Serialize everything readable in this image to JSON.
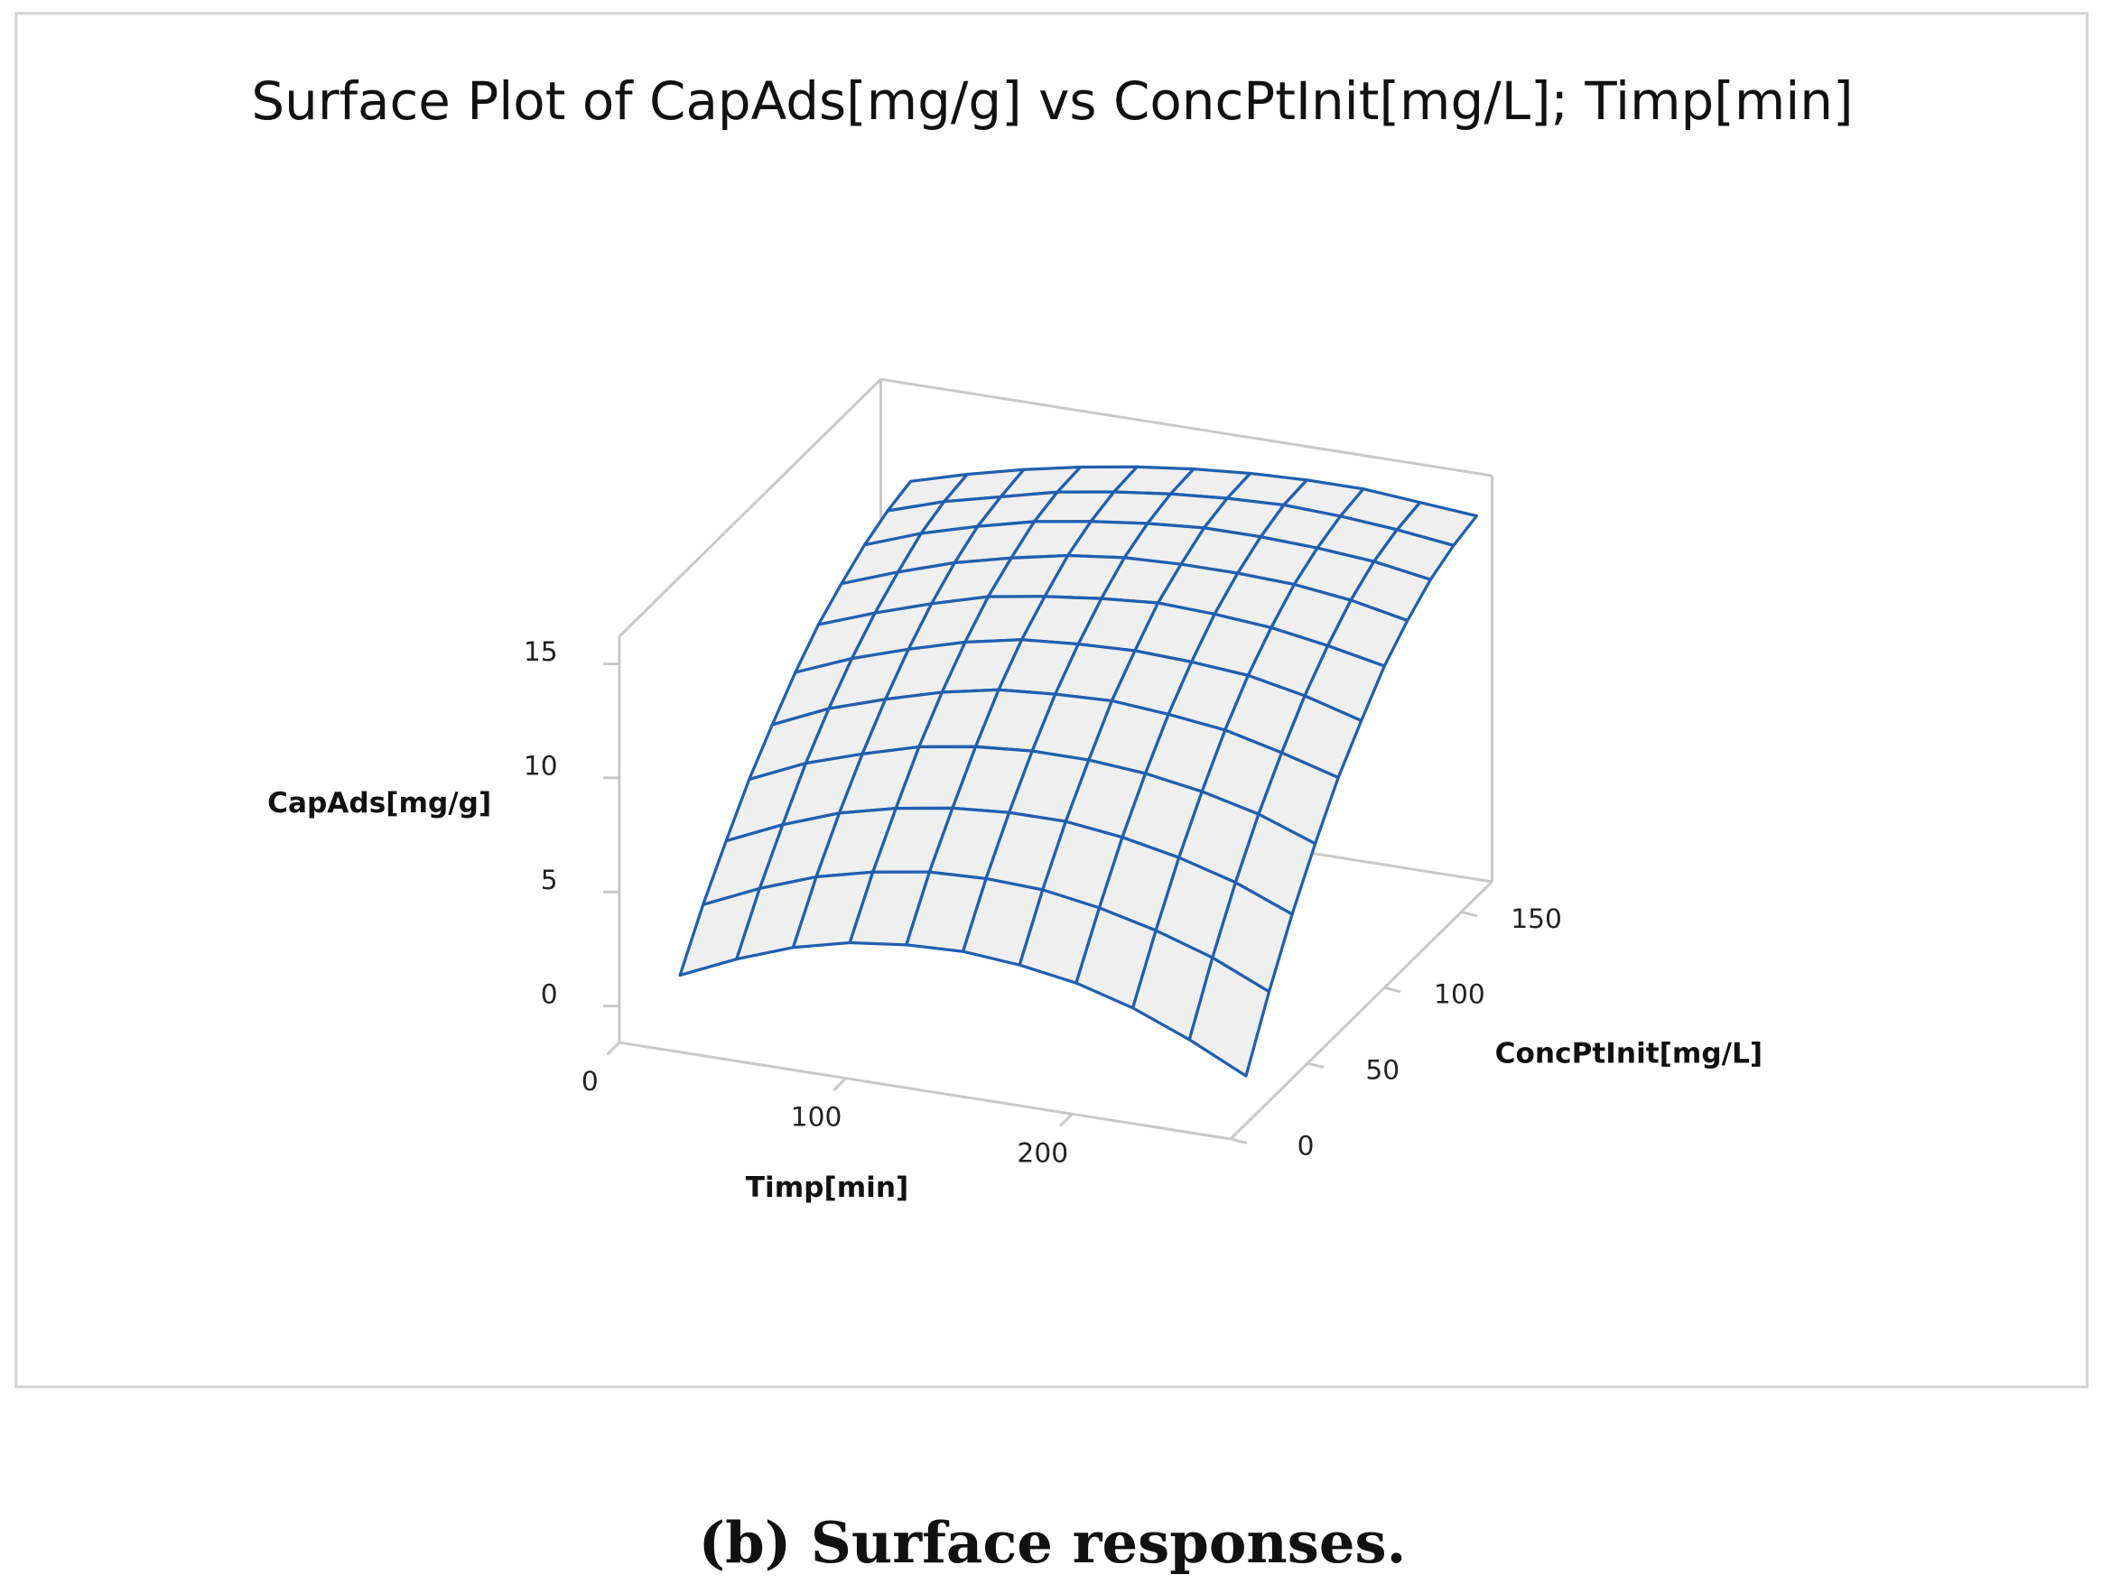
{
  "chart_data": {
    "type": "surface",
    "title": "Surface Plot of CapAds[mg/g] vs ConcPtInit[mg/L]; Timp[min]",
    "x_label": "Timp[min]",
    "y_label": "ConcPtInit[mg/L]",
    "z_label": "CapAds[mg/g]",
    "x": [
      20,
      45,
      70,
      95,
      120,
      145,
      170,
      195,
      220,
      245,
      270
    ],
    "y": [
      10,
      25,
      40,
      55,
      70,
      85,
      100,
      115,
      130,
      145,
      160
    ],
    "z": [
      [
        1.0,
        2.1,
        3.0,
        3.6,
        3.9,
        4.0,
        3.8,
        3.4,
        2.7,
        1.7,
        0.5
      ],
      [
        3.1,
        4.2,
        5.1,
        5.7,
        6.1,
        6.2,
        6.1,
        5.7,
        5.1,
        4.3,
        3.2
      ],
      [
        4.9,
        6.0,
        6.9,
        7.5,
        7.9,
        8.1,
        8.1,
        7.8,
        7.3,
        6.6,
        5.6
      ],
      [
        6.6,
        7.7,
        8.5,
        9.2,
        9.6,
        9.8,
        9.8,
        9.6,
        9.2,
        8.6,
        7.7
      ],
      [
        8.0,
        9.1,
        9.9,
        10.6,
        11.1,
        11.3,
        11.4,
        11.2,
        10.9,
        10.3,
        9.6
      ],
      [
        9.3,
        10.3,
        11.1,
        11.8,
        12.3,
        12.5,
        12.6,
        12.5,
        12.3,
        11.8,
        11.1
      ],
      [
        10.4,
        11.3,
        12.1,
        12.8,
        13.2,
        13.5,
        13.7,
        13.6,
        13.4,
        13.0,
        12.5
      ],
      [
        11.2,
        12.1,
        12.9,
        13.5,
        14.0,
        14.3,
        14.4,
        14.4,
        14.3,
        14.0,
        13.5
      ],
      [
        11.9,
        12.8,
        13.5,
        14.1,
        14.5,
        14.8,
        15.0,
        15.0,
        14.9,
        14.7,
        14.3
      ],
      [
        12.4,
        13.2,
        13.8,
        14.4,
        14.8,
        15.1,
        15.3,
        15.4,
        15.3,
        15.1,
        14.8
      ],
      [
        12.7,
        13.4,
        14.0,
        14.5,
        14.9,
        15.2,
        15.4,
        15.5,
        15.5,
        15.3,
        15.1
      ]
    ],
    "xlim": [
      0,
      270
    ],
    "ylim": [
      0,
      170
    ],
    "zlim": [
      -1.6,
      16.2
    ],
    "xticks": [
      0,
      100,
      200
    ],
    "yticks": [
      0,
      50,
      100,
      150
    ],
    "zticks": [
      0,
      5,
      10,
      15
    ],
    "color": "#1f5fb0",
    "surface_fill": "#efefef"
  },
  "caption": "(b) Surface responses."
}
